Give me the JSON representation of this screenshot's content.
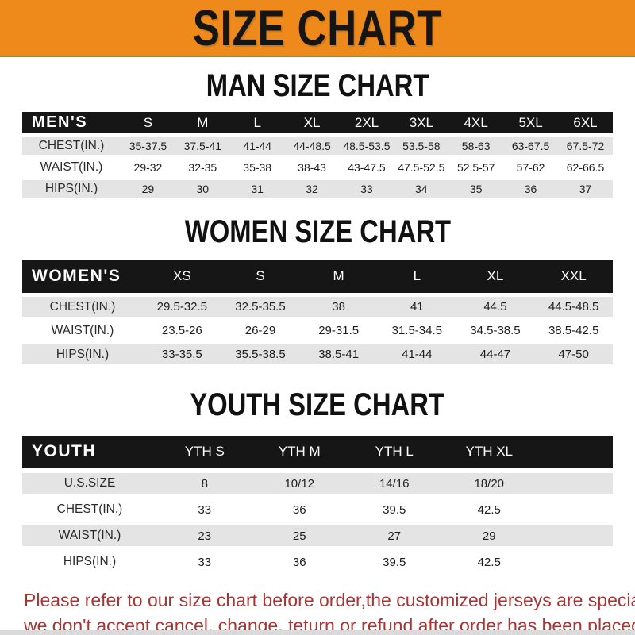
{
  "banner": {
    "title": "SIZE CHART"
  },
  "sections": [
    {
      "id": "men",
      "heading": "MAN SIZE CHART",
      "table_label": "MEN'S",
      "columns": [
        "S",
        "M",
        "L",
        "XL",
        "2XL",
        "3XL",
        "4XL",
        "5XL",
        "6XL"
      ],
      "rows": [
        {
          "label": "CHEST(IN.)",
          "values": [
            "35-37.5",
            "37.5-41",
            "41-44",
            "44-48.5",
            "48.5-53.5",
            "53.5-58",
            "58-63",
            "63-67.5",
            "67.5-72"
          ]
        },
        {
          "label": "WAIST(IN.)",
          "values": [
            "29-32",
            "32-35",
            "35-38",
            "38-43",
            "43-47.5",
            "47.5-52.5",
            "52.5-57",
            "57-62",
            "62-66.5"
          ]
        },
        {
          "label": "HIPS(IN.)",
          "values": [
            "29",
            "30",
            "31",
            "32",
            "33",
            "34",
            "35",
            "36",
            "37"
          ]
        }
      ]
    },
    {
      "id": "women",
      "heading": "WOMEN SIZE CHART",
      "table_label": "WOMEN'S",
      "columns": [
        "XS",
        "S",
        "M",
        "L",
        "XL",
        "XXL"
      ],
      "rows": [
        {
          "label": "CHEST(IN.)",
          "values": [
            "29.5-32.5",
            "32.5-35.5",
            "38",
            "41",
            "44.5",
            "44.5-48.5"
          ]
        },
        {
          "label": "WAIST(IN.)",
          "values": [
            "23.5-26",
            "26-29",
            "29-31.5",
            "31.5-34.5",
            "34.5-38.5",
            "38.5-42.5"
          ]
        },
        {
          "label": "HIPS(IN.)",
          "values": [
            "33-35.5",
            "35.5-38.5",
            "38.5-41",
            "41-44",
            "44-47",
            "47-50"
          ]
        }
      ]
    },
    {
      "id": "youth",
      "heading": "YOUTH SIZE CHART",
      "table_label": "YOUTH",
      "columns": [
        "YTH S",
        "YTH M",
        "YTH L",
        "YTH XL"
      ],
      "rows": [
        {
          "label": "U.S.SIZE",
          "values": [
            "8",
            "10/12",
            "14/16",
            "18/20"
          ]
        },
        {
          "label": "CHEST(IN.)",
          "values": [
            "33",
            "36",
            "39.5",
            "42.5"
          ]
        },
        {
          "label": "WAIST(IN.)",
          "values": [
            "23",
            "25",
            "27",
            "29"
          ]
        },
        {
          "label": "HIPS(IN.)",
          "values": [
            "33",
            "36",
            "39.5",
            "42.5"
          ]
        }
      ]
    }
  ],
  "footer": {
    "line1": "Please refer to our size chart before order,the customized jerseys are special products,",
    "line2": "we don't accept cancel, change, teturn or refund after order has been placed!"
  },
  "colors": {
    "banner_bg": "#ee8a1c",
    "header_bar_bg": "#161616",
    "row_stripe_bg": "#e4e4e4",
    "notice_text": "#a93434",
    "heading_text": "#111111"
  }
}
